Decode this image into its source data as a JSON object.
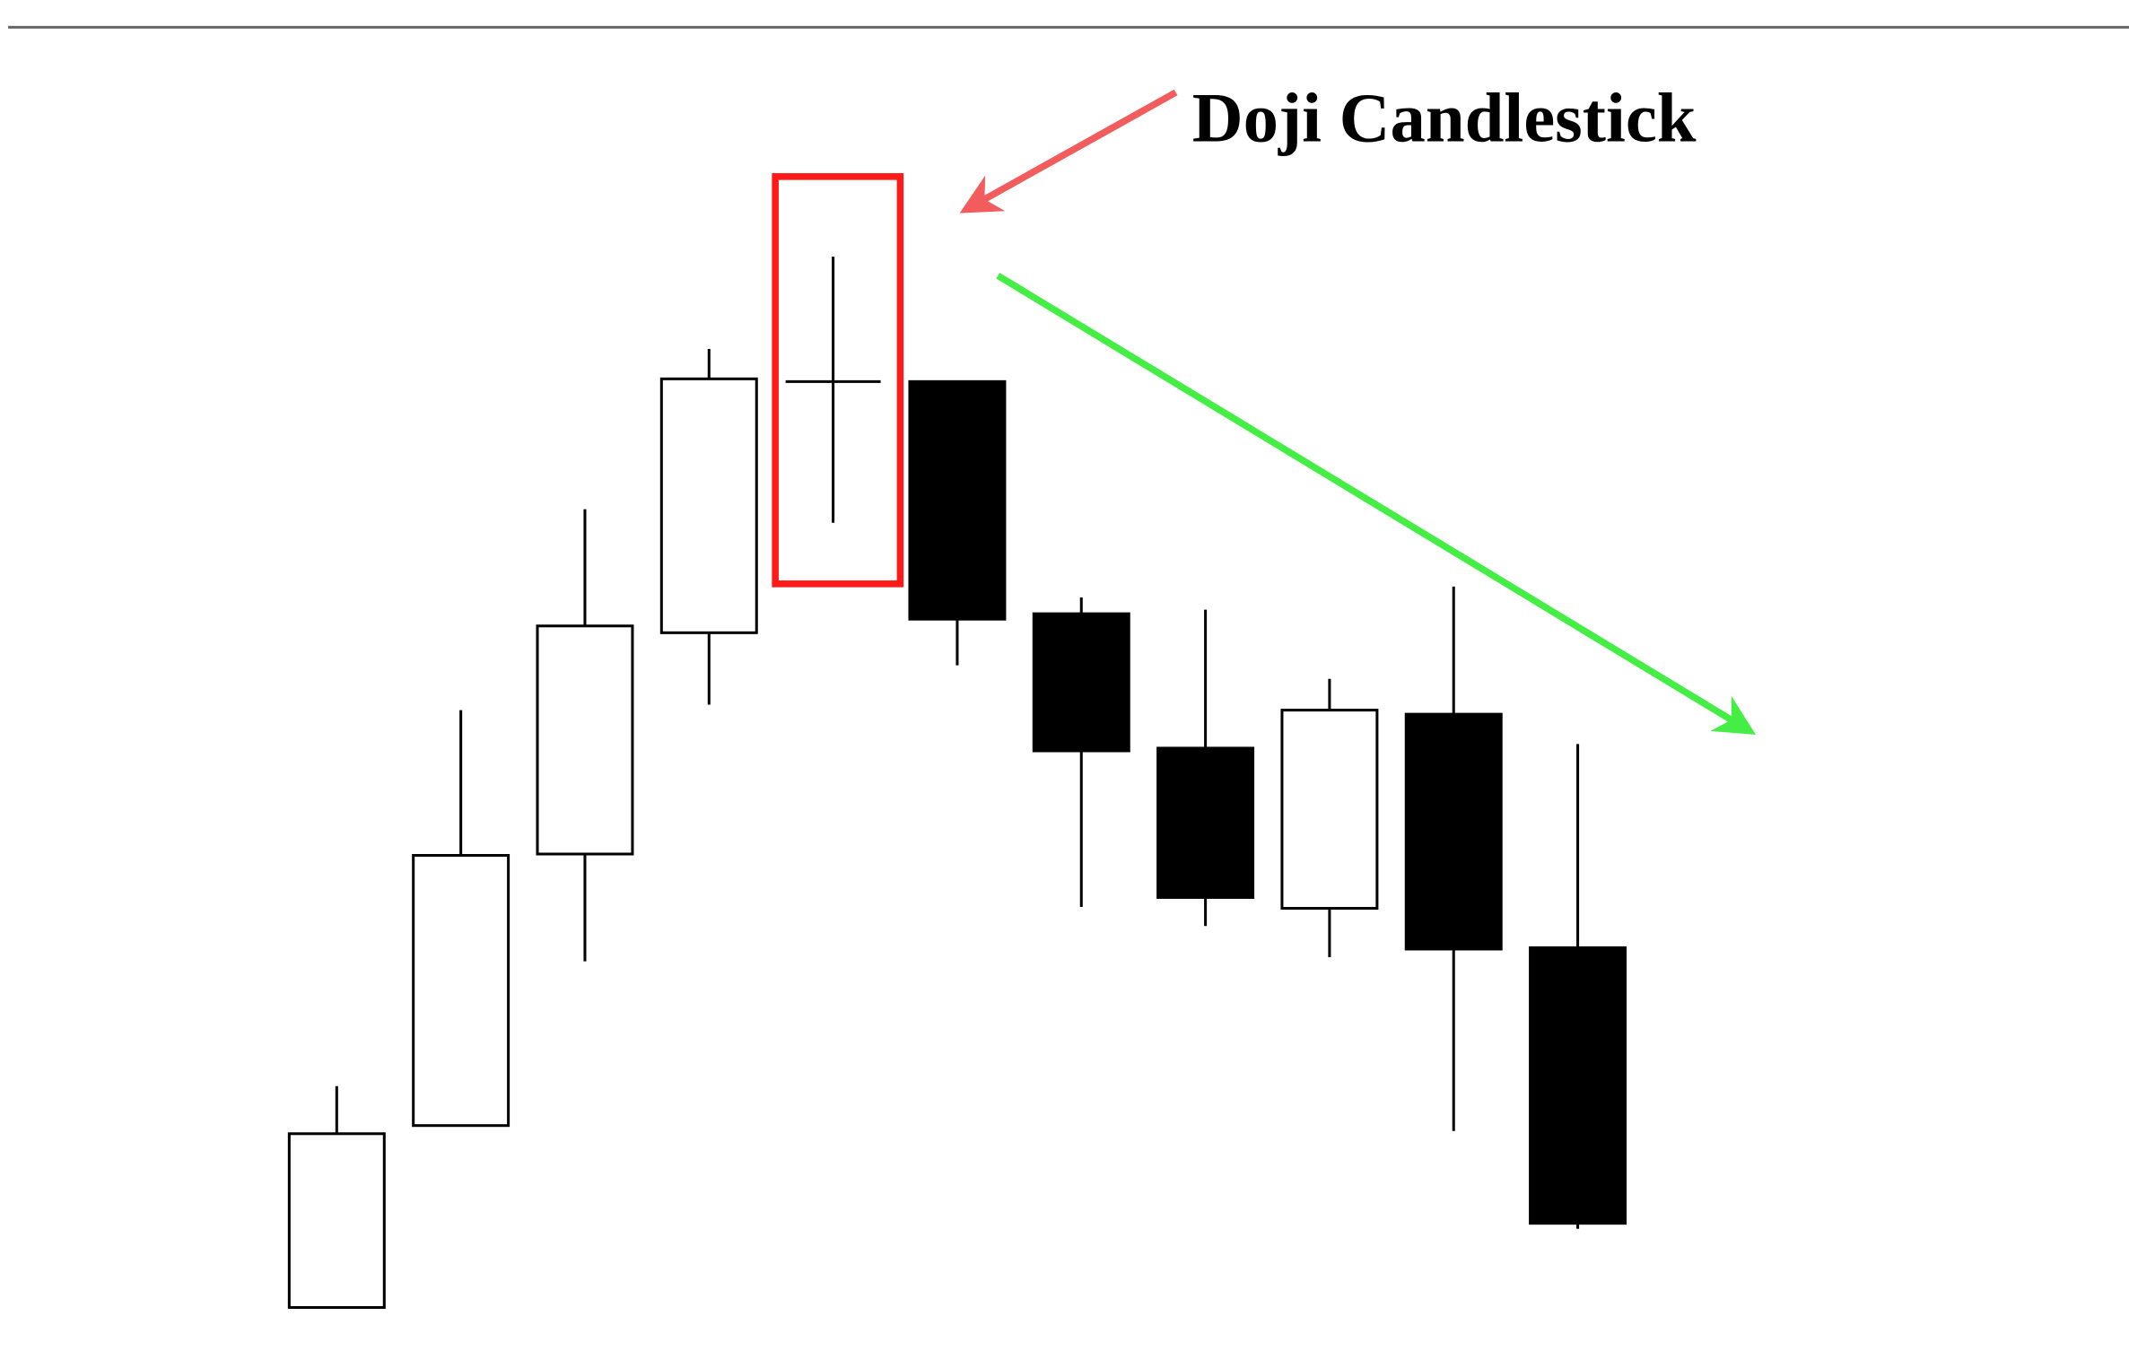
{
  "chart_data": {
    "type": "candlestick",
    "annotation": "Doji Candlestick",
    "open": [
      3.7,
      17.1,
      37.1,
      53.4,
      71.9,
      71.9,
      54.8,
      44.9,
      33.1,
      47.4,
      30.2
    ],
    "high": [
      20,
      47.7,
      62.5,
      74.3,
      81.1,
      71.9,
      56,
      55.1,
      50,
      56.8,
      45.2
    ],
    "low": [
      3.7,
      17.1,
      29.2,
      48.1,
      61.5,
      51,
      33.2,
      31.8,
      29.5,
      16.7,
      9.5
    ],
    "close": [
      16.5,
      37,
      53.9,
      72.1,
      71.9,
      54.4,
      44.7,
      33.9,
      47.7,
      30.1,
      9.9
    ],
    "up_color": "#ffffff",
    "down_color": "#000000",
    "ylim": [
      0,
      100
    ]
  }
}
